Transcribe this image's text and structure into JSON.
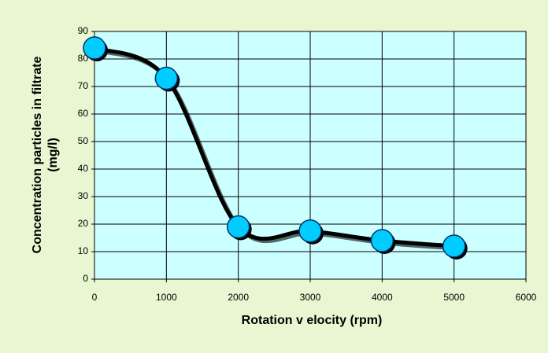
{
  "chart_data": {
    "type": "line",
    "x": [
      0,
      1000,
      2000,
      3000,
      4000,
      5000
    ],
    "series": [
      {
        "name": "Concentration",
        "color": "#00ccff",
        "values": [
          84,
          73,
          19,
          17.5,
          14,
          12
        ]
      }
    ],
    "xlabel": "Rotation v elocity (rpm)",
    "ylabel": [
      "Concentration particles in filtrate",
      "(mg/l)"
    ],
    "xlim": [
      0,
      6000
    ],
    "xticks": [
      0,
      1000,
      2000,
      3000,
      4000,
      5000,
      6000
    ],
    "ylim": [
      0,
      90
    ],
    "yticks": [
      0,
      10,
      20,
      30,
      40,
      50,
      60,
      70,
      80,
      90
    ],
    "grid": true,
    "smooth": true,
    "line_color": "#000000",
    "plot_background": "#ccffff"
  }
}
